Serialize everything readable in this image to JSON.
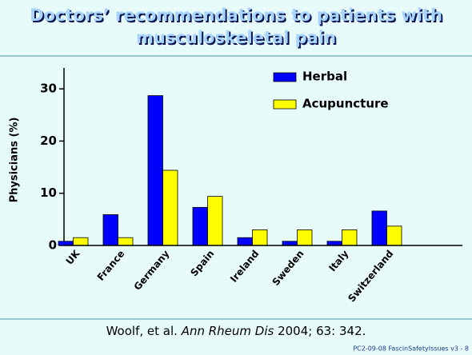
{
  "chart_data": {
    "type": "bar",
    "title_lines": [
      "Doctors’ recommendations to patients with",
      "musculoskeletal pain"
    ],
    "ylabel": "Physicians (%)",
    "categories": [
      "UK",
      "France",
      "Germany",
      "Spain",
      "Ireland",
      "Sweden",
      "Italy",
      "Switzerland"
    ],
    "series": [
      {
        "name": "Herbal",
        "color": "#0000ff",
        "values": [
          0.8,
          5.9,
          28.7,
          7.3,
          1.5,
          0.8,
          0.8,
          6.6
        ]
      },
      {
        "name": "Acupuncture",
        "color": "#ffff00",
        "values": [
          1.5,
          1.5,
          14.4,
          9.4,
          3.0,
          3.0,
          3.0,
          3.7
        ]
      }
    ],
    "ylim": [
      0,
      34
    ],
    "yticks": [
      0,
      10,
      20,
      30
    ],
    "citation": [
      "Woolf, et al. ",
      "Ann Rheum Dis",
      " 2004; 63: 342."
    ],
    "footer": "PC2-09-08 FascinSafetyIssues v3 - 8"
  }
}
